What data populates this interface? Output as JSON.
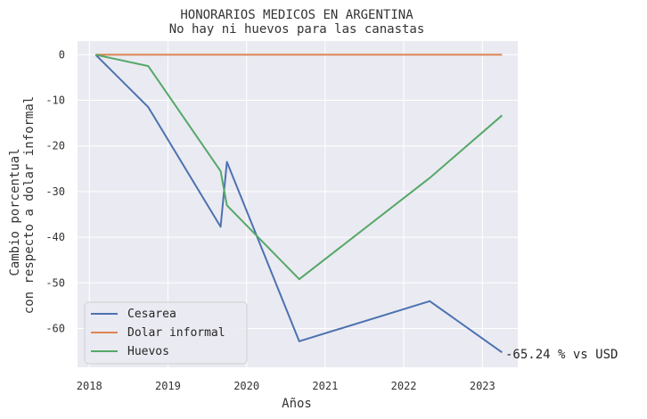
{
  "chart_data": {
    "type": "line",
    "title": "HONORARIOS MEDICOS EN ARGENTINA",
    "subtitle": "No hay ni huevos para las canastas",
    "xlabel": "Años",
    "ylabel_line1": "Cambio porcentual",
    "ylabel_line2": "con respecto a dolar informal",
    "xlim": [
      2017.85,
      2023.45
    ],
    "ylim": [
      -68.5,
      3
    ],
    "xticks": [
      2018,
      2019,
      2020,
      2021,
      2022,
      2023
    ],
    "yticks": [
      0,
      -10,
      -20,
      -30,
      -40,
      -50,
      -60
    ],
    "grid": true,
    "legend_position": "lower-left",
    "series": [
      {
        "name": "Cesarea",
        "color": "#4c72b0",
        "x": [
          2018.08,
          2018.75,
          2019.67,
          2019.75,
          2020.67,
          2022.33,
          2023.25
        ],
        "y": [
          0,
          -11.5,
          -37.7,
          -23.5,
          -62.8,
          -54,
          -65.24
        ]
      },
      {
        "name": "Dolar informal",
        "color": "#dd8452",
        "x": [
          2018.08,
          2023.25
        ],
        "y": [
          0,
          0
        ]
      },
      {
        "name": "Huevos",
        "color": "#55a868",
        "x": [
          2018.08,
          2018.75,
          2019.67,
          2019.75,
          2020.67,
          2022.33,
          2023.25
        ],
        "y": [
          0,
          -2.5,
          -25.5,
          -33,
          -49.2,
          -27,
          -13.3
        ]
      }
    ],
    "annotation": "-65.24 % vs USD"
  }
}
